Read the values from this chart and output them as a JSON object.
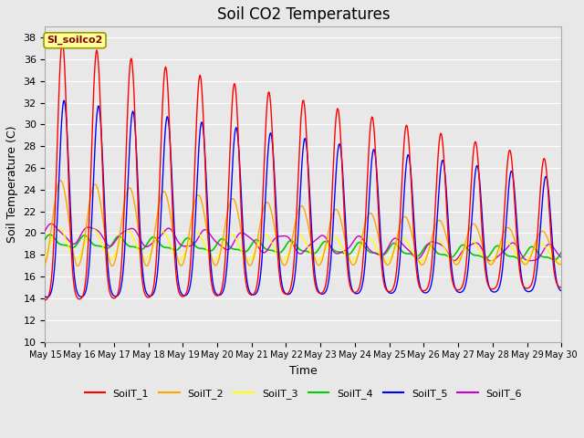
{
  "title": "Soil CO2 Temperatures",
  "xlabel": "Time",
  "ylabel": "Soil Temperature (C)",
  "ylim": [
    10,
    39
  ],
  "yticks": [
    10,
    12,
    14,
    16,
    18,
    20,
    22,
    24,
    26,
    28,
    30,
    32,
    34,
    36,
    38
  ],
  "bg_color": "#e8e8e8",
  "annotation_text": "SI_soilco2",
  "annotation_bg": "#ffff99",
  "annotation_border": "#999900",
  "annotation_text_color": "#8B0000",
  "series_colors": {
    "SoilT_1": "#ff0000",
    "SoilT_2": "#ffa500",
    "SoilT_3": "#ffff00",
    "SoilT_4": "#00cc00",
    "SoilT_5": "#0000ff",
    "SoilT_6": "#cc00cc"
  },
  "figsize": [
    6.4,
    4.8
  ],
  "dpi": 100
}
